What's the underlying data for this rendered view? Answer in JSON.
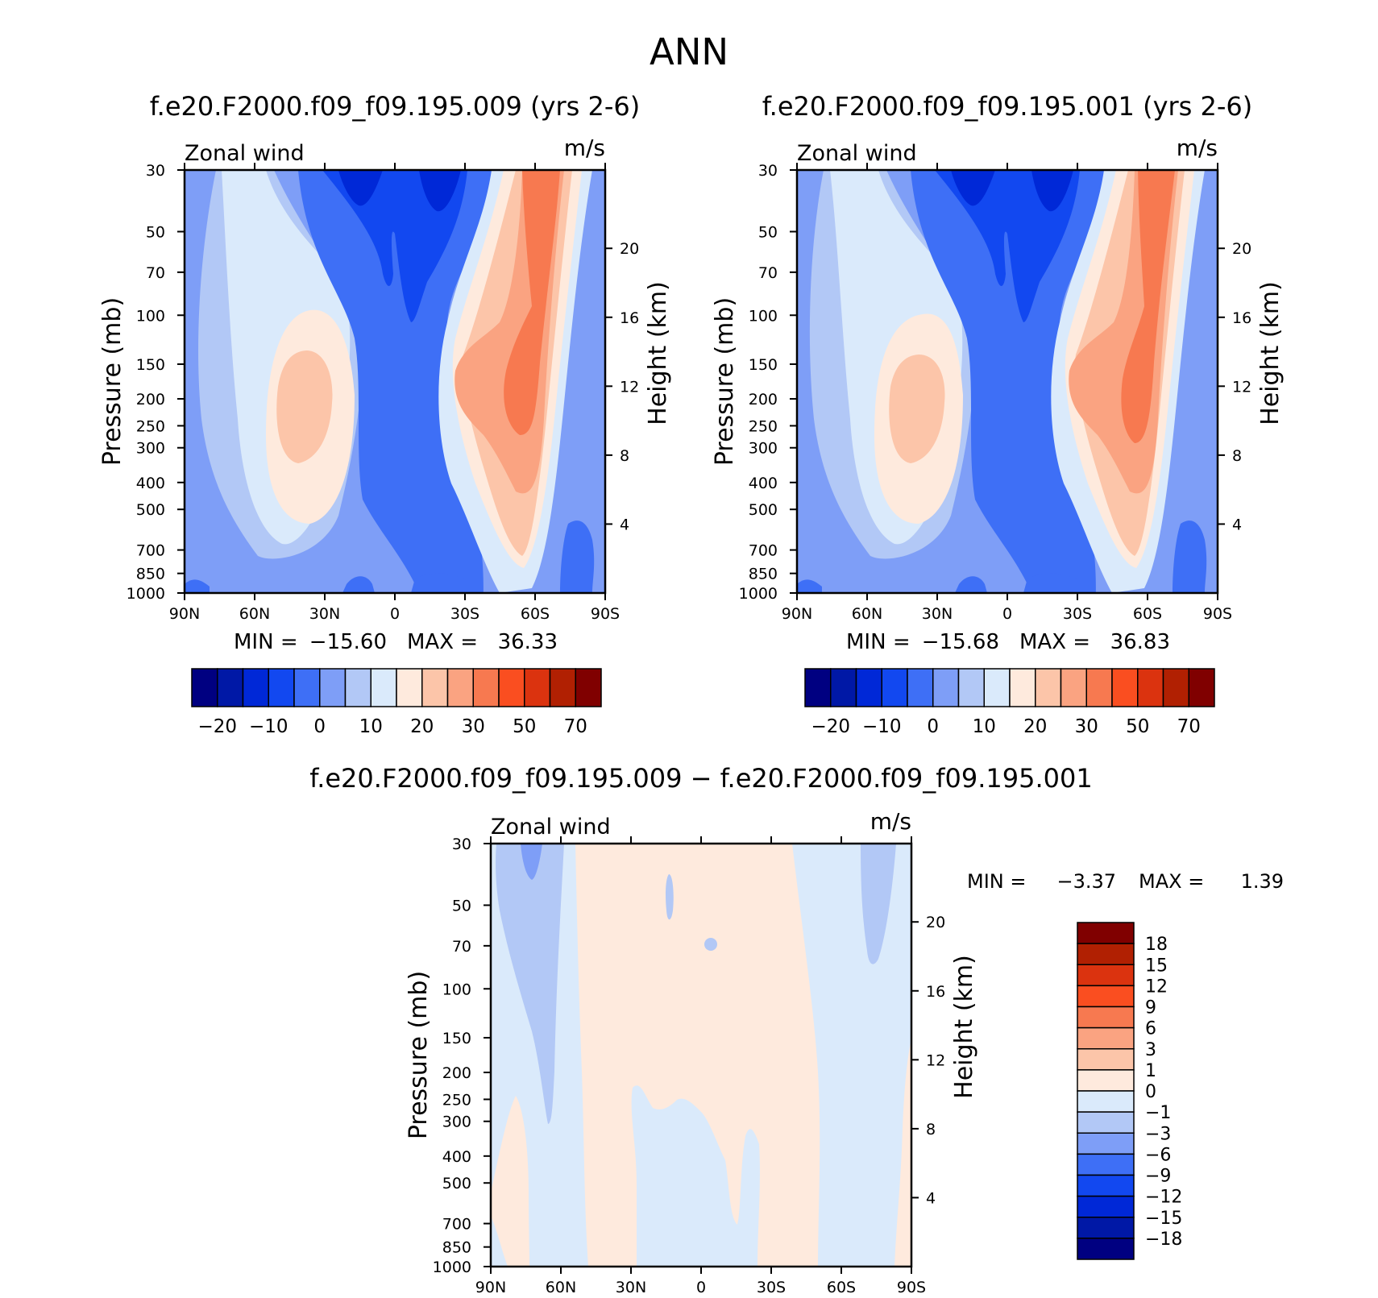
{
  "title": "ANN",
  "colors": {
    "abs_levels": [
      "#000081",
      "#0018a6",
      "#0028d7",
      "#1248f0",
      "#3e6ff6",
      "#7e9ef7",
      "#b2c8f6",
      "#daeafb",
      "#feeadd",
      "#fcc5a9",
      "#faa381",
      "#f77950",
      "#fa4e20",
      "#db330f",
      "#b12002",
      "#800000"
    ],
    "diff_levels": [
      "#000081",
      "#0018a6",
      "#0028d7",
      "#1248f0",
      "#3e6ff6",
      "#7e9ef7",
      "#b2c8f6",
      "#daeafb",
      "#feeadd",
      "#fcc5a9",
      "#faa381",
      "#f77950",
      "#fa4e20",
      "#db330f",
      "#b12002",
      "#800000"
    ]
  },
  "chart_data": [
    {
      "id": "panel1",
      "type": "heatmap",
      "title": "f.e20.F2000.f09_f09.195.009 (yrs 2-6)",
      "left_label": "Zonal wind",
      "units": "m/s",
      "ylabel": "Pressure (mb)",
      "y2label": "Height (km)",
      "x_ticks": [
        "90N",
        "60N",
        "30N",
        "0",
        "30S",
        "60S",
        "90S"
      ],
      "y_ticks": [
        30,
        50,
        70,
        100,
        150,
        200,
        250,
        300,
        400,
        500,
        700,
        850,
        1000
      ],
      "y2_ticks": [
        4,
        8,
        12,
        16,
        20
      ],
      "min_label": "MIN =",
      "min_value": "−15.60",
      "max_label": "MAX =",
      "max_value": "36.33",
      "colorbar_labels": [
        "−20",
        "−10",
        "0",
        "10",
        "20",
        "30",
        "50",
        "70"
      ]
    },
    {
      "id": "panel2",
      "type": "heatmap",
      "title": "f.e20.F2000.f09_f09.195.001 (yrs 2-6)",
      "left_label": "Zonal wind",
      "units": "m/s",
      "ylabel": "Pressure (mb)",
      "y2label": "Height (km)",
      "x_ticks": [
        "90N",
        "60N",
        "30N",
        "0",
        "30S",
        "60S",
        "90S"
      ],
      "y_ticks": [
        30,
        50,
        70,
        100,
        150,
        200,
        250,
        300,
        400,
        500,
        700,
        850,
        1000
      ],
      "y2_ticks": [
        4,
        8,
        12,
        16,
        20
      ],
      "min_label": "MIN =",
      "min_value": "−15.68",
      "max_label": "MAX =",
      "max_value": "36.83",
      "colorbar_labels": [
        "−20",
        "−10",
        "0",
        "10",
        "20",
        "30",
        "50",
        "70"
      ]
    },
    {
      "id": "panel3",
      "type": "heatmap",
      "title": "f.e20.F2000.f09_f09.195.009 − f.e20.F2000.f09_f09.195.001",
      "left_label": "Zonal wind",
      "units": "m/s",
      "ylabel": "Pressure (mb)",
      "y2label": "Height (km)",
      "x_ticks": [
        "90N",
        "60N",
        "30N",
        "0",
        "30S",
        "60S",
        "90S"
      ],
      "y_ticks": [
        30,
        50,
        70,
        100,
        150,
        200,
        250,
        300,
        400,
        500,
        700,
        850,
        1000
      ],
      "y2_ticks": [
        4,
        8,
        12,
        16,
        20
      ],
      "min_label": "MIN =",
      "min_value": "−3.37",
      "max_label": "MAX =",
      "max_value": "1.39",
      "colorbar_labels": [
        "18",
        "15",
        "12",
        "9",
        "6",
        "3",
        "1",
        "0",
        "−1",
        "−3",
        "−6",
        "−9",
        "−12",
        "−15",
        "−18"
      ]
    }
  ]
}
